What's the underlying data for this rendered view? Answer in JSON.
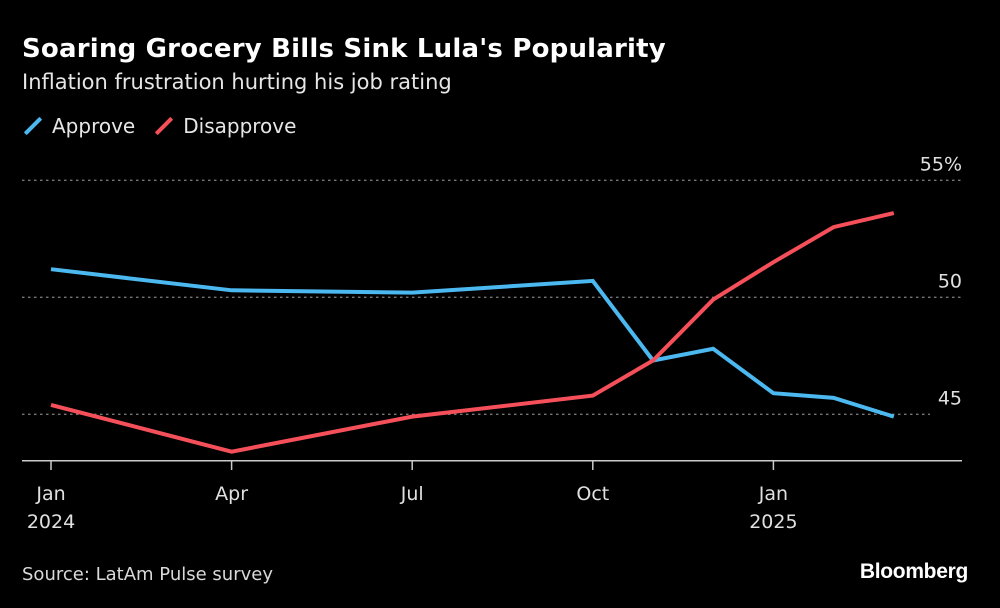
{
  "chart_data": {
    "type": "line",
    "title": "Soaring Grocery Bills Sink Lula's Popularity",
    "subtitle": "Inflation frustration hurting his job rating",
    "x": [
      "2024-01",
      "2024-02",
      "2024-03",
      "2024-04",
      "2024-05",
      "2024-06",
      "2024-07",
      "2024-08",
      "2024-09",
      "2024-10",
      "2024-11",
      "2024-12",
      "2025-01",
      "2025-02",
      "2025-03"
    ],
    "x_ticks": [
      {
        "month_index": 0,
        "label": "Jan",
        "sublabel": "2024"
      },
      {
        "month_index": 3,
        "label": "Apr",
        "sublabel": ""
      },
      {
        "month_index": 6,
        "label": "Jul",
        "sublabel": ""
      },
      {
        "month_index": 9,
        "label": "Oct",
        "sublabel": ""
      },
      {
        "month_index": 12,
        "label": "Jan",
        "sublabel": "2025"
      }
    ],
    "y_ticks": [
      {
        "value": 55,
        "label": "55%"
      },
      {
        "value": 50,
        "label": "50"
      },
      {
        "value": 45,
        "label": "45"
      }
    ],
    "ylim": [
      43,
      56
    ],
    "xlim": [
      0,
      15
    ],
    "grid": true,
    "legend_placement": "top-left",
    "series": [
      {
        "name": "Approve",
        "color": "#4cb8f0",
        "points": [
          [
            0,
            51.2
          ],
          [
            3,
            50.3
          ],
          [
            6,
            50.2
          ],
          [
            9,
            50.7
          ],
          [
            10,
            47.3
          ],
          [
            11,
            47.8
          ],
          [
            12,
            45.9
          ],
          [
            13,
            45.7
          ],
          [
            14,
            44.9
          ]
        ]
      },
      {
        "name": "Disapprove",
        "color": "#f5505a",
        "points": [
          [
            0,
            45.4
          ],
          [
            3,
            43.4
          ],
          [
            6,
            44.9
          ],
          [
            9,
            45.8
          ],
          [
            10,
            47.3
          ],
          [
            11,
            49.9
          ],
          [
            12,
            51.5
          ],
          [
            13,
            53.0
          ],
          [
            14,
            53.6
          ]
        ]
      }
    ]
  },
  "footer": {
    "source": "Source: LatAm Pulse survey",
    "logo": "Bloomberg"
  }
}
